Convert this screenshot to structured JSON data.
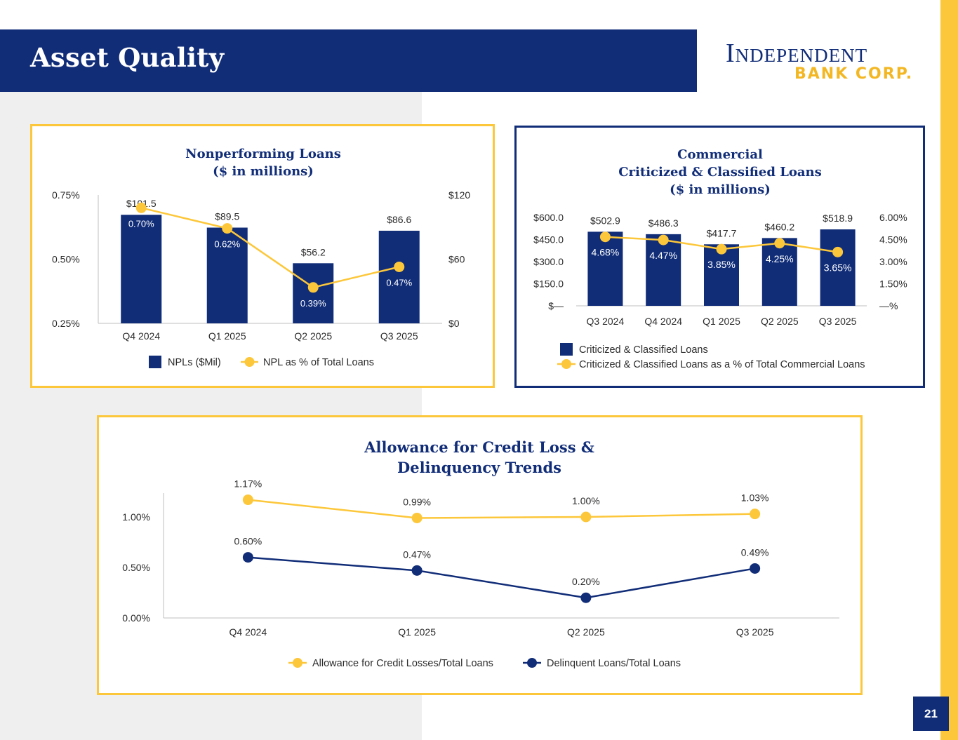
{
  "header": {
    "title": "Asset Quality",
    "logo_line1": "Independent",
    "logo_line2": "BANK CORP.",
    "page_number": "21"
  },
  "colors": {
    "navy": "#112d78",
    "gold": "#fcc73a",
    "grey": "#efefef"
  },
  "chart_data": [
    {
      "type": "bar",
      "title": "Nonperforming Loans",
      "subtitle": "($ in millions)",
      "categories": [
        "Q4 2024",
        "Q1 2025",
        "Q2 2025",
        "Q3 2025"
      ],
      "series": [
        {
          "name": "NPLs ($Mil)",
          "kind": "bar",
          "axis": "right",
          "values": [
            101.5,
            89.5,
            56.2,
            86.6
          ],
          "labels": [
            "$101.5",
            "$89.5",
            "$56.2",
            "$86.6"
          ]
        },
        {
          "name": "NPL as % of Total Loans",
          "kind": "line",
          "axis": "left",
          "values": [
            0.7,
            0.62,
            0.39,
            0.47
          ],
          "labels": [
            "0.70%",
            "0.62%",
            "0.39%",
            "0.47%"
          ]
        }
      ],
      "y_left": {
        "min": 0.25,
        "max": 0.75,
        "ticks": [
          0.75,
          0.5,
          0.25
        ],
        "tick_labels": [
          "0.75%",
          "0.50%",
          "0.25%"
        ]
      },
      "y_right": {
        "min": 0,
        "max": 120,
        "ticks": [
          120,
          60,
          0
        ],
        "tick_labels": [
          "$120",
          "$60",
          "$0"
        ]
      }
    },
    {
      "type": "bar",
      "title_lines": [
        "Commercial",
        "Criticized & Classified Loans",
        "($ in millions)"
      ],
      "categories": [
        "Q3 2024",
        "Q4 2024",
        "Q1 2025",
        "Q2 2025",
        "Q3 2025"
      ],
      "series": [
        {
          "name": "Criticized & Classified Loans",
          "kind": "bar",
          "axis": "left",
          "values": [
            502.9,
            486.3,
            417.7,
            460.2,
            518.9
          ],
          "labels": [
            "$502.9",
            "$486.3",
            "$417.7",
            "$460.2",
            "$518.9"
          ]
        },
        {
          "name": "Criticized & Classified Loans as a % of Total Commercial Loans",
          "kind": "line",
          "axis": "right",
          "values": [
            4.68,
            4.47,
            3.85,
            4.25,
            3.65
          ],
          "labels": [
            "4.68%",
            "4.47%",
            "3.85%",
            "4.25%",
            "3.65%"
          ]
        }
      ],
      "y_left": {
        "min": 0,
        "max": 600,
        "ticks": [
          600,
          450,
          300,
          150,
          0
        ],
        "tick_labels": [
          "$600.0",
          "$450.0",
          "$300.0",
          "$150.0",
          "$—"
        ]
      },
      "y_right": {
        "min": 0,
        "max": 6,
        "ticks": [
          6,
          4.5,
          3,
          1.5,
          0
        ],
        "tick_labels": [
          "6.00%",
          "4.50%",
          "3.00%",
          "1.50%",
          "—%"
        ]
      }
    },
    {
      "type": "line",
      "title_lines": [
        "Allowance for Credit Loss &",
        "Delinquency Trends"
      ],
      "categories": [
        "Q4 2024",
        "Q1 2025",
        "Q2 2025",
        "Q3 2025"
      ],
      "series": [
        {
          "name": "Allowance for Credit Losses/Total Loans",
          "color": "#fcc73a",
          "values": [
            1.17,
            0.99,
            1.0,
            1.03
          ],
          "labels": [
            "1.17%",
            "0.99%",
            "1.00%",
            "1.03%"
          ]
        },
        {
          "name": "Delinquent Loans/Total Loans",
          "color": "#112d78",
          "values": [
            0.6,
            0.47,
            0.2,
            0.49
          ],
          "labels": [
            "0.60%",
            "0.47%",
            "0.20%",
            "0.49%"
          ]
        }
      ],
      "y": {
        "min": 0,
        "max": 1.25,
        "ticks": [
          1.0,
          0.5,
          0.0
        ],
        "tick_labels": [
          "1.00%",
          "0.50%",
          "0.00%"
        ]
      }
    }
  ]
}
